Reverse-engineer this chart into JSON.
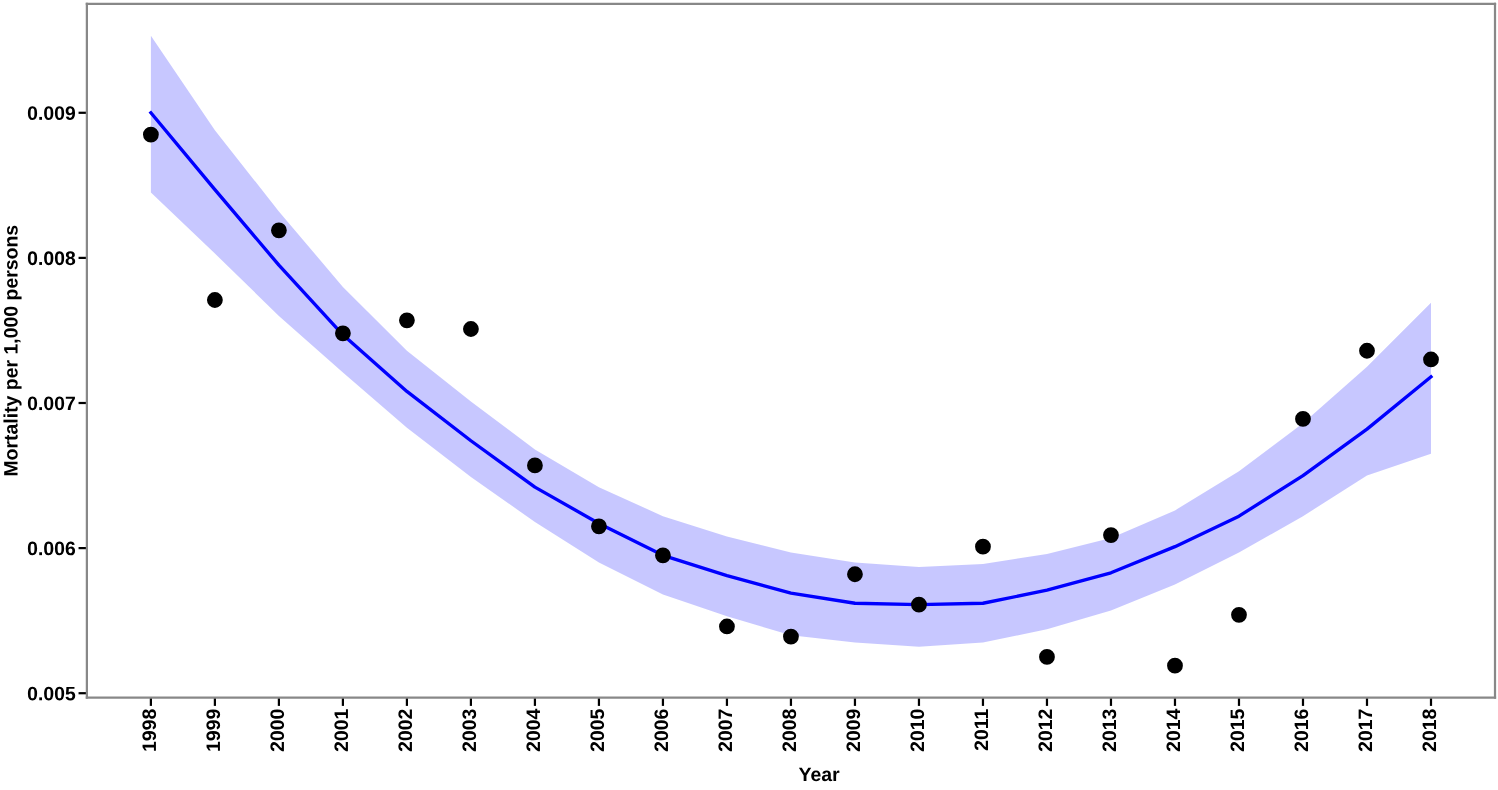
{
  "chart_data": {
    "type": "scatter",
    "xlabel": "Year",
    "ylabel": "Mortality per 1,000 persons",
    "x": [
      1998,
      1999,
      2000,
      2001,
      2002,
      2003,
      2004,
      2005,
      2006,
      2007,
      2008,
      2009,
      2010,
      2011,
      2012,
      2013,
      2014,
      2015,
      2016,
      2017,
      2018
    ],
    "series": [
      {
        "color": "#000000",
        "marker": "circle",
        "values": [
          0.00885,
          0.00771,
          0.00819,
          0.00748,
          0.00757,
          0.00751,
          0.00657,
          0.00615,
          0.00595,
          0.00546,
          0.00539,
          0.00582,
          0.00561,
          0.00601,
          0.00525,
          0.00609,
          0.00519,
          0.00554,
          0.00689,
          0.00736,
          0.0073
        ]
      },
      {
        "type": "line",
        "color": "#0000ff",
        "marker": "none",
        "line_style": "solid",
        "values": [
          0.009,
          0.00847,
          0.00795,
          0.00747,
          0.00708,
          0.00674,
          0.00642,
          0.00617,
          0.00595,
          0.00581,
          0.00569,
          0.00562,
          0.00561,
          0.00562,
          0.00571,
          0.00583,
          0.00601,
          0.00622,
          0.0065,
          0.00682,
          0.00718
        ],
        "upper": [
          0.00953,
          0.00888,
          0.00832,
          0.0078,
          0.00736,
          0.00701,
          0.00668,
          0.00642,
          0.00622,
          0.00608,
          0.00597,
          0.0059,
          0.00587,
          0.00589,
          0.00596,
          0.00607,
          0.00626,
          0.00653,
          0.00686,
          0.00725,
          0.00769
        ],
        "lower": [
          0.00845,
          0.00803,
          0.0076,
          0.00721,
          0.00683,
          0.00649,
          0.00618,
          0.0059,
          0.00568,
          0.00553,
          0.0054,
          0.00535,
          0.00532,
          0.00535,
          0.00544,
          0.00557,
          0.00575,
          0.00597,
          0.00622,
          0.0065,
          0.00665
        ]
      }
    ],
    "xlim": [
      1997,
      2019
    ],
    "xticks": [
      1998,
      1999,
      2000,
      2001,
      2002,
      2003,
      2004,
      2005,
      2006,
      2007,
      2008,
      2009,
      2010,
      2011,
      2012,
      2013,
      2014,
      2015,
      2016,
      2017,
      2018
    ],
    "ylim": [
      0.00497,
      0.00975
    ],
    "yticks": [
      {
        "value": 0.005,
        "label": "0.005"
      },
      {
        "value": 0.006,
        "label": "0.006"
      },
      {
        "value": 0.007,
        "label": "0.007"
      },
      {
        "value": 0.008,
        "label": "0.008"
      },
      {
        "value": 0.009,
        "label": "0.009"
      }
    ],
    "grid": false,
    "legend": false
  }
}
